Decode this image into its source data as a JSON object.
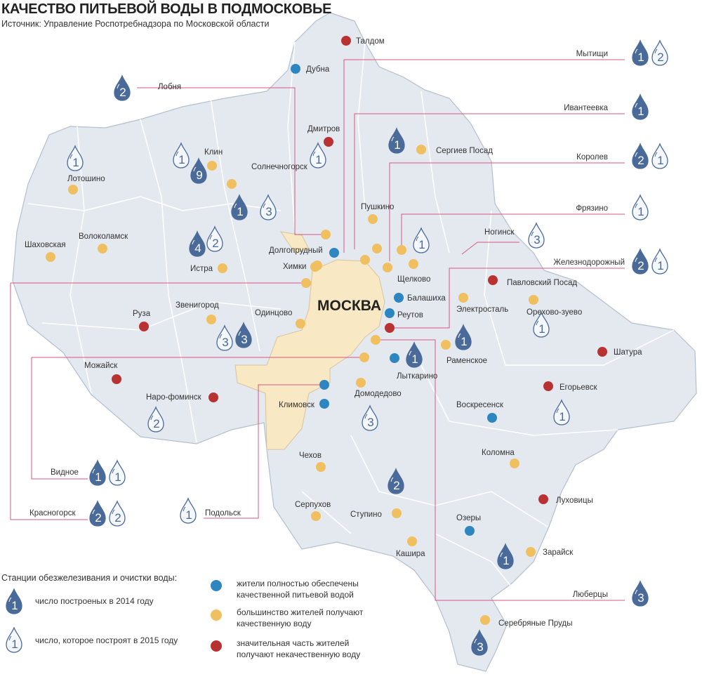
{
  "header": {
    "title": "КАЧЕСТВО ПИТЬЕВОЙ ВОДЫ В ПОДМОСКОВЬЕ",
    "source": "Источник: Управление Роспотребнадзора по Московской области"
  },
  "colors": {
    "full": "#2e86c1",
    "most": "#f0c060",
    "poor": "#b83232",
    "drop": "#4a6a9a",
    "region": "#e4e9f0",
    "moscow": "#f8e8c4",
    "callout": "#d9577f"
  },
  "moscow_label": "МОСКВА",
  "cities": [
    {
      "name": "Талдом",
      "status": "poor"
    },
    {
      "name": "Дубна",
      "status": "full"
    },
    {
      "name": "Дмитров",
      "status": "poor"
    },
    {
      "name": "Сергиев Посад",
      "status": "most"
    },
    {
      "name": "Клин",
      "status": "most"
    },
    {
      "name": "Лотошино",
      "status": "most"
    },
    {
      "name": "Солнечногорск",
      "status": "most"
    },
    {
      "name": "Пушкино",
      "status": "most"
    },
    {
      "name": "Волоколамск",
      "status": "most"
    },
    {
      "name": "Шаховская",
      "status": "most"
    },
    {
      "name": "Долгопрудный",
      "status": "full"
    },
    {
      "name": "Химки",
      "status": "most"
    },
    {
      "name": "Истра",
      "status": "most"
    },
    {
      "name": "Щелково",
      "status": "most"
    },
    {
      "name": "Балашиха",
      "status": "full"
    },
    {
      "name": "Реутов",
      "status": "full"
    },
    {
      "name": "Павловский Посад",
      "status": "poor"
    },
    {
      "name": "Электросталь",
      "status": "most"
    },
    {
      "name": "Орехово-зуево",
      "status": "most"
    },
    {
      "name": "Руза",
      "status": "poor"
    },
    {
      "name": "Звенигород",
      "status": "most"
    },
    {
      "name": "Одинцово",
      "status": "most"
    },
    {
      "name": "Раменское",
      "status": "most"
    },
    {
      "name": "Лыткарино",
      "status": "full"
    },
    {
      "name": "Шатура",
      "status": "poor"
    },
    {
      "name": "Можайск",
      "status": "poor"
    },
    {
      "name": "Наро-фоминск",
      "status": "poor"
    },
    {
      "name": "Климовск",
      "status": "full"
    },
    {
      "name": "Домодедово",
      "status": "most"
    },
    {
      "name": "Егорьевск",
      "status": "poor"
    },
    {
      "name": "Воскресенск",
      "status": "full"
    },
    {
      "name": "Чехов",
      "status": "most"
    },
    {
      "name": "Коломна",
      "status": "most"
    },
    {
      "name": "Луховицы",
      "status": "poor"
    },
    {
      "name": "Серпухов",
      "status": "most"
    },
    {
      "name": "Ступино",
      "status": "most"
    },
    {
      "name": "Озеры",
      "status": "full"
    },
    {
      "name": "Кашира",
      "status": "most"
    },
    {
      "name": "Зарайск",
      "status": "most"
    },
    {
      "name": "Серебряные Пруды",
      "status": "most"
    }
  ],
  "unlabeled_dots": [
    "most",
    "most",
    "most",
    "most",
    "most",
    "most",
    "most",
    "poor",
    "most",
    "most",
    "full",
    "most"
  ],
  "callouts": [
    {
      "name": "Мытищи",
      "built_2014": "1",
      "planned_2015": "2"
    },
    {
      "name": "Ивантеевка",
      "built_2014": "1"
    },
    {
      "name": "Королев",
      "built_2014": "2",
      "planned_2015": "1"
    },
    {
      "name": "Фрязино",
      "planned_2015": "1"
    },
    {
      "name": "Ногинск",
      "planned_2015": "3"
    },
    {
      "name": "Железнодорожный",
      "built_2014": "2",
      "planned_2015": "1"
    },
    {
      "name": "Люберцы",
      "built_2014": "3"
    },
    {
      "name": "Лобня",
      "built_2014": "2"
    },
    {
      "name": "Видное",
      "built_2014": "1",
      "planned_2015": "1"
    },
    {
      "name": "Красногорск",
      "built_2014": "2",
      "planned_2015": "2"
    },
    {
      "name": "Подольск",
      "planned_2015": "1"
    }
  ],
  "map_drops": [
    {
      "type": "2015",
      "value": "1"
    },
    {
      "type": "2015",
      "value": "1"
    },
    {
      "type": "2014",
      "value": "9"
    },
    {
      "type": "2014",
      "value": "1"
    },
    {
      "type": "2015",
      "value": "3"
    },
    {
      "type": "2014",
      "value": "4"
    },
    {
      "type": "2015",
      "value": "2"
    },
    {
      "type": "2015",
      "value": "1"
    },
    {
      "type": "2014",
      "value": "1"
    },
    {
      "type": "2015",
      "value": "1"
    },
    {
      "type": "2015",
      "value": "3"
    },
    {
      "type": "2014",
      "value": "3"
    },
    {
      "type": "2014",
      "value": "1"
    },
    {
      "type": "2014",
      "value": "1"
    },
    {
      "type": "2015",
      "value": "1"
    },
    {
      "type": "2015",
      "value": "1"
    },
    {
      "type": "2015",
      "value": "2"
    },
    {
      "type": "2015",
      "value": "3"
    },
    {
      "type": "2014",
      "value": "2"
    },
    {
      "type": "2014",
      "value": "1"
    },
    {
      "type": "2014",
      "value": "3"
    }
  ],
  "legend": {
    "stations_title": "Станции обезжелезивания и очистки воды:",
    "built_2014": "число построеных в 2014 году",
    "built_2014_value": "1",
    "planned_2015": "число, которое построят в 2015 году",
    "planned_2015_value": "1",
    "full": "жители полностью обеспечены качественной питьевой водой",
    "most": "большинство жителей получают качественную воду",
    "poor": "значительная часть жителей получают некачественную воду"
  }
}
